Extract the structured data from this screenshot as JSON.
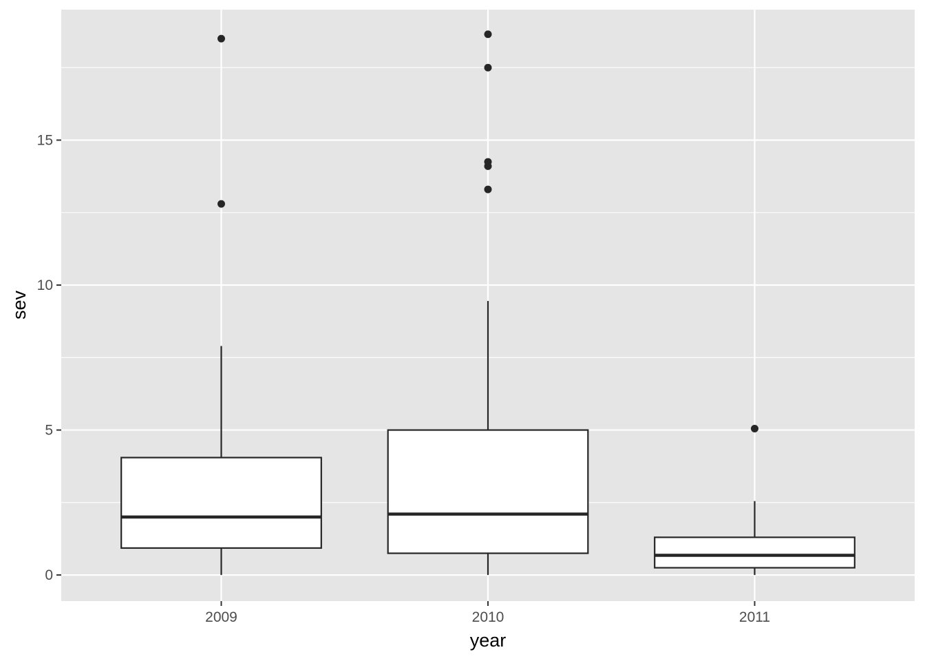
{
  "chart_data": {
    "type": "boxplot",
    "xlabel": "year",
    "ylabel": "sev",
    "categories": [
      "2009",
      "2010",
      "2011"
    ],
    "yticks": [
      0,
      5,
      10,
      15
    ],
    "ylim": [
      -0.9,
      19.5
    ],
    "grid": true,
    "colors": {
      "panel": "#e5e5e5",
      "grid": "#ffffff",
      "box_fill": "#ffffff",
      "box_stroke": "#262626",
      "outlier": "#262626"
    },
    "boxes": [
      {
        "category": "2009",
        "whisker_low": 0.0,
        "q1": 0.93,
        "median": 2.0,
        "q3": 4.05,
        "whisker_high": 7.9,
        "outliers": [
          12.8,
          18.5
        ]
      },
      {
        "category": "2010",
        "whisker_low": 0.0,
        "q1": 0.75,
        "median": 2.1,
        "q3": 5.0,
        "whisker_high": 9.45,
        "outliers": [
          13.3,
          14.1,
          14.25,
          17.5,
          18.65
        ]
      },
      {
        "category": "2011",
        "whisker_low": 0.0,
        "q1": 0.25,
        "median": 0.68,
        "q3": 1.3,
        "whisker_high": 2.55,
        "outliers": [
          5.05
        ]
      }
    ]
  }
}
